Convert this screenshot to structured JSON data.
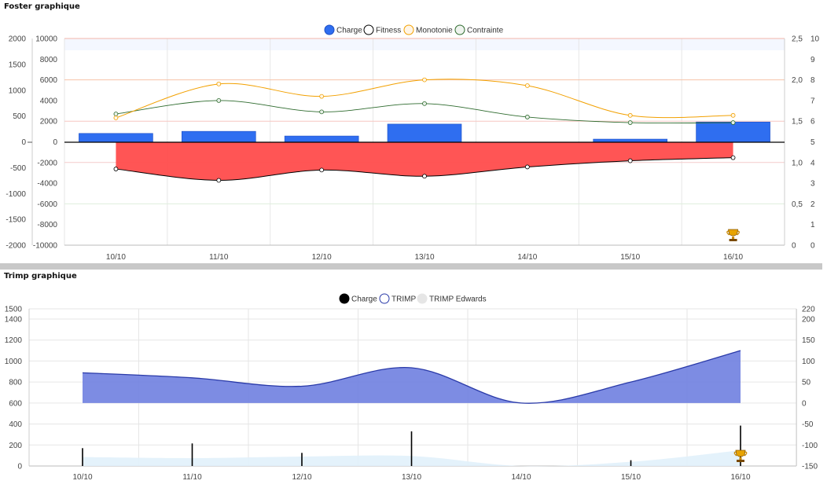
{
  "foster": {
    "title": "Foster graphique",
    "chart_data": {
      "type": "bar",
      "categories": [
        "10/10",
        "11/10",
        "12/10",
        "13/10",
        "14/10",
        "15/10",
        "16/10"
      ],
      "legend_position": "top",
      "grid": true,
      "series": [
        {
          "name": "Charge",
          "type": "bar",
          "axis": "left-inner",
          "color": "#2f6ef0",
          "values": [
            850,
            1050,
            600,
            1750,
            0,
            300,
            1950
          ]
        },
        {
          "name": "Fitness",
          "type": "line-area",
          "axis": "left-inner",
          "color": "#000000",
          "fill": "#ff4c4c",
          "values": [
            -2600,
            -3700,
            -2700,
            -3300,
            -2400,
            -1800,
            -1500
          ]
        },
        {
          "name": "Monotonie",
          "type": "line",
          "axis": "right-inner",
          "color": "#f2a000",
          "values": [
            1.54,
            1.95,
            1.8,
            2.0,
            1.93,
            1.57,
            1.57
          ]
        },
        {
          "name": "Contrainte",
          "type": "line",
          "axis": "right-outer",
          "color": "#2e6b2e",
          "values": [
            6.35,
            7.0,
            6.45,
            6.85,
            6.2,
            5.93,
            5.93
          ]
        }
      ],
      "axes": {
        "left_outer": {
          "min": -2000,
          "max": 2000,
          "ticks": [
            "2000",
            "1500",
            "1000",
            "500",
            "0",
            "-500",
            "-1000",
            "-1500",
            "-2000"
          ]
        },
        "left_inner": {
          "min": -10000,
          "max": 10000,
          "ticks": [
            "10000",
            "8000",
            "6000",
            "4000",
            "2000",
            "0",
            "-2000",
            "-4000",
            "-6000",
            "-8000",
            "-10000"
          ]
        },
        "right_inner": {
          "min": 0,
          "max": 2.5,
          "ticks": [
            "2,5",
            "2,0",
            "1,5",
            "1,0",
            "0,5",
            "0"
          ]
        },
        "right_outer": {
          "min": 0,
          "max": 10,
          "ticks": [
            "10",
            "9",
            "8",
            "7",
            "6",
            "5",
            "4",
            "3",
            "2",
            "1",
            "0"
          ]
        }
      },
      "trophy_category": "16/10"
    }
  },
  "trimp": {
    "title": "Trimp graphique",
    "chart_data": {
      "type": "area",
      "categories": [
        "10/10",
        "11/10",
        "12/10",
        "13/10",
        "14/10",
        "15/10",
        "16/10"
      ],
      "legend_position": "top",
      "grid": true,
      "series": [
        {
          "name": "Charge",
          "type": "bar",
          "axis": "left",
          "color": "#000000",
          "values": [
            170,
            215,
            125,
            330,
            0,
            55,
            385
          ]
        },
        {
          "name": "TRIMP",
          "type": "area",
          "axis": "right",
          "color": "#2a3aa8",
          "fill": "#6f7fe0",
          "values": [
            72,
            60,
            40,
            84,
            0,
            50,
            125
          ]
        },
        {
          "name": "TRIMP Edwards",
          "type": "area",
          "axis": "left",
          "color": "#d6ecf8",
          "fill": "#e1f1fb",
          "values": [
            85,
            75,
            90,
            95,
            -10,
            40,
            150
          ]
        }
      ],
      "axes": {
        "left": {
          "min": 0,
          "max": 1500,
          "ticks": [
            "1500",
            "1400",
            "1200",
            "1000",
            "800",
            "600",
            "400",
            "200",
            "0"
          ]
        },
        "right": {
          "min": -150,
          "max": 220,
          "ticks": [
            "220",
            "200",
            "150",
            "100",
            "50",
            "0",
            "-50",
            "-100",
            "-150"
          ]
        }
      },
      "trophy_category": "16/10"
    }
  }
}
